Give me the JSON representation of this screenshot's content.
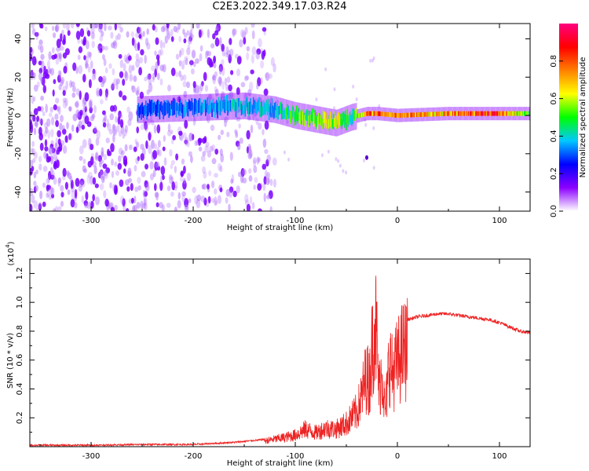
{
  "title": "C2E3.2022.349.17.03.R24",
  "chart_data": [
    {
      "type": "heatmap",
      "xlabel": "Height of straight line (km)",
      "ylabel": "Frequency (Hz)",
      "xlim": [
        -360,
        130
      ],
      "ylim": [
        -50,
        48
      ],
      "xticks": [
        -300,
        -200,
        -100,
        0,
        100
      ],
      "yticks": [
        -40,
        -20,
        0,
        20,
        40
      ],
      "colorbar": {
        "label": "Normalized spectral amplitude",
        "range": [
          0.0,
          1.0
        ],
        "ticks": [
          "0.0",
          "0.2",
          "0.4",
          "0.6",
          "0.8"
        ],
        "colors": [
          "#ffffff",
          "#8c00ff",
          "#0000ff",
          "#00c8ff",
          "#00ff00",
          "#ffff00",
          "#ff8000",
          "#ff0000",
          "#ff0080"
        ]
      },
      "ridge": {
        "description": "signal ridge near 0 Hz",
        "x": [
          -255,
          -200,
          -150,
          -120,
          -100,
          -80,
          -60,
          -45,
          -30,
          -20,
          0,
          50,
          90,
          130
        ],
        "center_hz": [
          3,
          4,
          5,
          3,
          0,
          -2,
          -4,
          -1,
          1,
          1,
          0,
          1,
          1,
          1
        ],
        "amplitude": [
          0.3,
          0.35,
          0.4,
          0.4,
          0.55,
          0.6,
          0.65,
          0.45,
          0.8,
          0.85,
          0.8,
          0.75,
          0.95,
          0.5
        ]
      },
      "outlier": {
        "x": -30,
        "y": -22
      }
    },
    {
      "type": "line",
      "xlabel": "Height of straight line (km)",
      "ylabel": "SNR (10 * v/v)",
      "scale_label": "(x10",
      "scale_exp": "4",
      "scale_close": ")",
      "xlim": [
        -360,
        130
      ],
      "ylim": [
        0,
        1.3
      ],
      "xticks": [
        -300,
        -200,
        -100,
        0,
        100
      ],
      "yticks": [
        "0.2",
        "0.4",
        "0.6",
        "0.8",
        "1.0",
        "1.2"
      ],
      "series": [
        {
          "color": "#ee2222",
          "x": [
            -360,
            -300,
            -250,
            -200,
            -160,
            -130,
            -110,
            -100,
            -90,
            -80,
            -70,
            -60,
            -50,
            -40,
            -35,
            -30,
            -28,
            -25,
            -22,
            -20,
            -18,
            -15,
            -12,
            -10,
            -8,
            -5,
            0,
            5,
            10,
            20,
            30,
            40,
            50,
            60,
            70,
            80,
            90,
            100,
            110,
            120,
            130
          ],
          "values": [
            0.01,
            0.01,
            0.015,
            0.015,
            0.03,
            0.05,
            0.08,
            0.1,
            0.15,
            0.12,
            0.16,
            0.15,
            0.2,
            0.3,
            0.45,
            0.65,
            0.55,
            0.85,
            1.2,
            0.9,
            0.5,
            0.7,
            0.3,
            0.5,
            0.8,
            0.65,
            0.75,
            0.85,
            0.88,
            0.9,
            0.91,
            0.92,
            0.92,
            0.91,
            0.9,
            0.89,
            0.88,
            0.86,
            0.83,
            0.8,
            0.79
          ]
        }
      ]
    }
  ]
}
